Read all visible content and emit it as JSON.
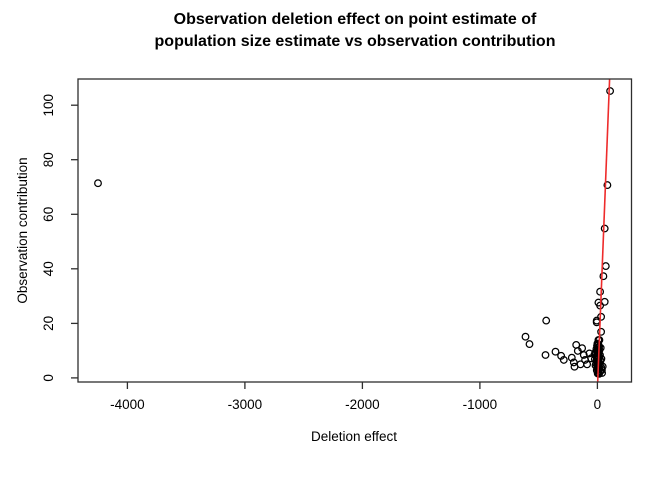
{
  "chart_data": {
    "type": "scatter",
    "title": "Observation deletion effect on point estimate of\npopulation size estimate vs observation contribution",
    "xlabel": "Deletion effect",
    "ylabel": "Observation contribution",
    "xlim": [
      -4420,
      290
    ],
    "ylim": [
      -1.5,
      109.6
    ],
    "x_ticks": [
      -4000,
      -3000,
      -2000,
      -1000,
      0
    ],
    "y_ticks": [
      0,
      20,
      40,
      60,
      80,
      100
    ],
    "grid": false,
    "legend": "none",
    "marker": "open-circle",
    "point_color": "#000000",
    "frame_color": "#2e2e2e",
    "line_color": "#ee2b2b",
    "reference_line": {
      "x1": 2,
      "y1": -1.5,
      "x2": 104,
      "y2": 109.6
    },
    "points": [
      [
        -4250,
        71.4
      ],
      [
        -612,
        15.1
      ],
      [
        -578,
        12.4
      ],
      [
        -442,
        8.4
      ],
      [
        -436,
        21.0
      ],
      [
        -357,
        9.6
      ],
      [
        -309,
        8.1
      ],
      [
        -286,
        6.6
      ],
      [
        -218,
        7.4
      ],
      [
        -201,
        5.7
      ],
      [
        -195,
        4.1
      ],
      [
        -181,
        12.1
      ],
      [
        -167,
        9.9
      ],
      [
        -144,
        5.0
      ],
      [
        -130,
        10.9
      ],
      [
        -116,
        8.4
      ],
      [
        -105,
        6.6
      ],
      [
        -88,
        5.0
      ],
      [
        -68,
        9.0
      ],
      [
        -54,
        7.2
      ],
      [
        108,
        105.2
      ],
      [
        85,
        70.7
      ],
      [
        62,
        54.8
      ],
      [
        71,
        41.0
      ],
      [
        51,
        37.3
      ],
      [
        23,
        31.6
      ],
      [
        62,
        27.9
      ],
      [
        8,
        27.6
      ],
      [
        23,
        26.5
      ],
      [
        31,
        22.4
      ],
      [
        -6,
        21.0
      ],
      [
        -6,
        20.4
      ],
      [
        31,
        16.9
      ],
      [
        8,
        13.9
      ],
      [
        17,
        13.9
      ],
      [
        0,
        12.6
      ],
      [
        9,
        12.2
      ],
      [
        -4,
        11.8
      ],
      [
        14,
        11.4
      ],
      [
        4,
        11.0
      ],
      [
        -9,
        10.6
      ],
      [
        18,
        10.2
      ],
      [
        7,
        9.9
      ],
      [
        0,
        9.5
      ],
      [
        12,
        9.1
      ],
      [
        -14,
        8.8
      ],
      [
        22,
        8.4
      ],
      [
        5,
        8.1
      ],
      [
        -2,
        7.7
      ],
      [
        16,
        7.4
      ],
      [
        9,
        7.0
      ],
      [
        -7,
        6.7
      ],
      [
        26,
        6.3
      ],
      [
        12,
        6.0
      ],
      [
        2,
        5.6
      ],
      [
        -11,
        5.3
      ],
      [
        19,
        4.9
      ],
      [
        7,
        4.6
      ],
      [
        0,
        4.2
      ],
      [
        31,
        3.9
      ],
      [
        14,
        3.5
      ],
      [
        4,
        3.1
      ],
      [
        -5,
        2.8
      ],
      [
        24,
        2.4
      ],
      [
        10,
        2.0
      ],
      [
        2,
        1.6
      ],
      [
        38,
        2.9
      ],
      [
        45,
        4.2
      ],
      [
        34,
        7.0
      ],
      [
        28,
        11.0
      ],
      [
        40,
        1.8
      ],
      [
        3,
        12.0
      ],
      [
        6,
        11.2
      ],
      [
        1,
        10.4
      ],
      [
        10,
        9.7
      ],
      [
        5,
        8.9
      ],
      [
        -1,
        8.3
      ],
      [
        8,
        7.6
      ],
      [
        3,
        6.9
      ],
      [
        11,
        6.1
      ],
      [
        6,
        5.4
      ],
      [
        1,
        4.8
      ],
      [
        9,
        4.0
      ],
      [
        4,
        3.3
      ],
      [
        12,
        2.6
      ],
      [
        7,
        1.9
      ],
      [
        14,
        1.5
      ],
      [
        -18,
        9.3
      ],
      [
        -22,
        6.9
      ],
      [
        -16,
        4.6
      ],
      [
        -25,
        8.6
      ]
    ]
  }
}
